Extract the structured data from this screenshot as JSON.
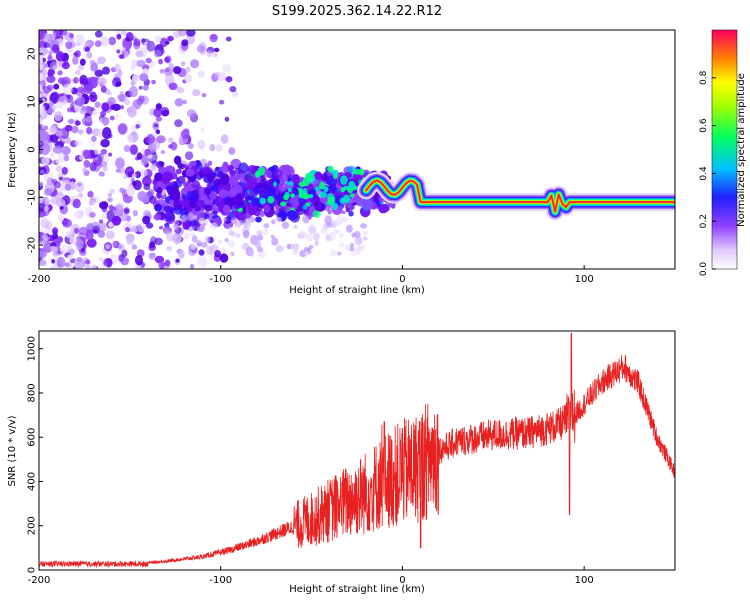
{
  "figure": {
    "title": "S199.2025.362.14.22.R12"
  },
  "chart_data": [
    {
      "type": "heatmap",
      "xlabel": "Height of straight line (km)",
      "ylabel": "Frequency (Hz)",
      "xlim": [
        -200,
        150
      ],
      "ylim": [
        -25,
        25
      ],
      "xticks": [
        -200,
        -100,
        0,
        100
      ],
      "yticks": [
        -20,
        -10,
        0,
        10,
        20
      ],
      "colorbar": {
        "label": "Normalized spectral amplitude",
        "range": [
          0,
          1
        ],
        "ticks": [
          0.0,
          0.2,
          0.4,
          0.6,
          0.8
        ],
        "tick_labels": [
          "0.0",
          "0.2",
          "0.4",
          "0.6",
          "0.8"
        ],
        "colormap": [
          "#e8d8ff",
          "#a060ff",
          "#5000e0",
          "#1030ff",
          "#00c0ff",
          "#00ff80",
          "#80ff00",
          "#ffff00",
          "#ff8000",
          "#ff0040"
        ]
      },
      "description_points": {
        "carrier_frequency_hz": -11,
        "carrier_start_km": 8,
        "noise_region_km": [
          -200,
          -130
        ],
        "signal_onset_km": -130
      }
    },
    {
      "type": "line",
      "xlabel": "Height of straight line (km)",
      "ylabel": "SNR (10 * v/v)",
      "xlim": [
        -200,
        150
      ],
      "ylim": [
        0,
        1080
      ],
      "xticks": [
        -200,
        -100,
        0,
        100
      ],
      "yticks": [
        0,
        200,
        400,
        600,
        800,
        1000
      ],
      "line_color": "#e82020",
      "series": [
        {
          "envelope": [
            {
              "x": -200,
              "y": 20
            },
            {
              "x": -150,
              "y": 25
            },
            {
              "x": -130,
              "y": 40
            },
            {
              "x": -110,
              "y": 60
            },
            {
              "x": -95,
              "y": 90
            },
            {
              "x": -80,
              "y": 130
            },
            {
              "x": -65,
              "y": 180
            },
            {
              "x": -50,
              "y": 230
            },
            {
              "x": -35,
              "y": 290
            },
            {
              "x": -20,
              "y": 350
            },
            {
              "x": -10,
              "y": 400
            },
            {
              "x": 0,
              "y": 440
            },
            {
              "x": 10,
              "y": 470
            },
            {
              "x": 20,
              "y": 540
            },
            {
              "x": 30,
              "y": 580
            },
            {
              "x": 50,
              "y": 610
            },
            {
              "x": 70,
              "y": 620
            },
            {
              "x": 85,
              "y": 650
            },
            {
              "x": 95,
              "y": 700
            },
            {
              "x": 110,
              "y": 850
            },
            {
              "x": 122,
              "y": 920
            },
            {
              "x": 130,
              "y": 840
            },
            {
              "x": 140,
              "y": 600
            },
            {
              "x": 150,
              "y": 440
            }
          ],
          "spikes": [
            {
              "x": -10,
              "y": 670
            },
            {
              "x": 0,
              "y": 640
            },
            {
              "x": 10,
              "y": 100
            },
            {
              "x": 92,
              "y": 250
            },
            {
              "x": 93,
              "y": 1070
            }
          ]
        }
      ]
    }
  ]
}
